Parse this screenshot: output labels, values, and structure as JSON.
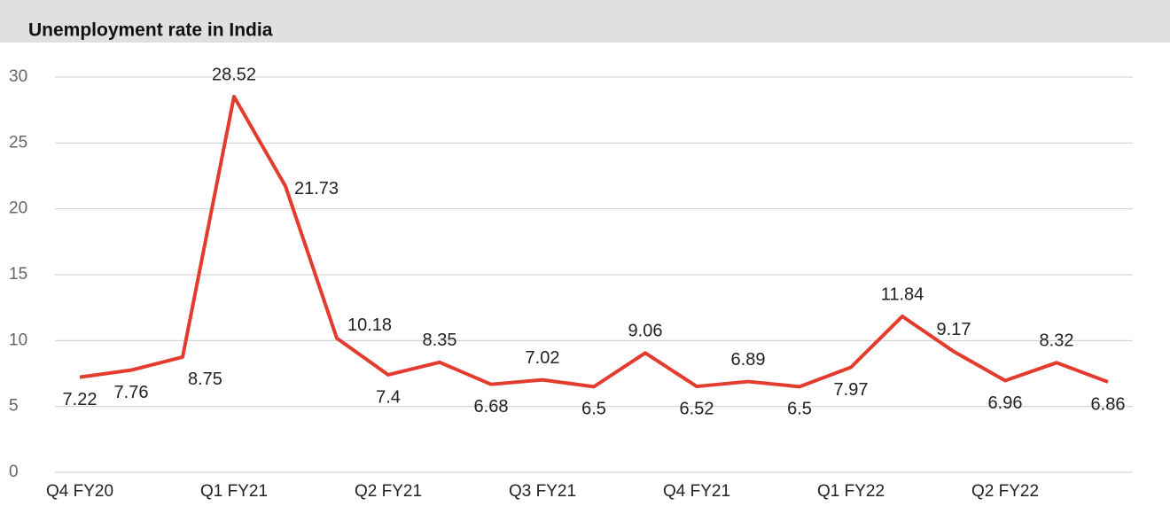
{
  "chart_data": {
    "type": "line",
    "title": "Unemployment rate in India",
    "categories": [
      "Q4 FY20",
      null,
      null,
      "Q1 FY21",
      null,
      null,
      "Q2 FY21",
      null,
      null,
      "Q3 FY21",
      null,
      null,
      "Q4 FY21",
      null,
      null,
      "Q1 FY22",
      null,
      null,
      "Q2 FY22",
      null,
      null
    ],
    "values": [
      7.22,
      7.76,
      8.75,
      28.52,
      21.73,
      10.18,
      7.4,
      8.35,
      6.68,
      7.02,
      6.5,
      9.06,
      6.52,
      6.89,
      6.5,
      7.97,
      11.84,
      9.17,
      6.96,
      8.32,
      6.86
    ],
    "color": "#e33b2e",
    "ylim": [
      0,
      30
    ],
    "yticks": [
      0,
      5,
      10,
      15,
      20,
      25,
      30
    ],
    "grid": true
  }
}
